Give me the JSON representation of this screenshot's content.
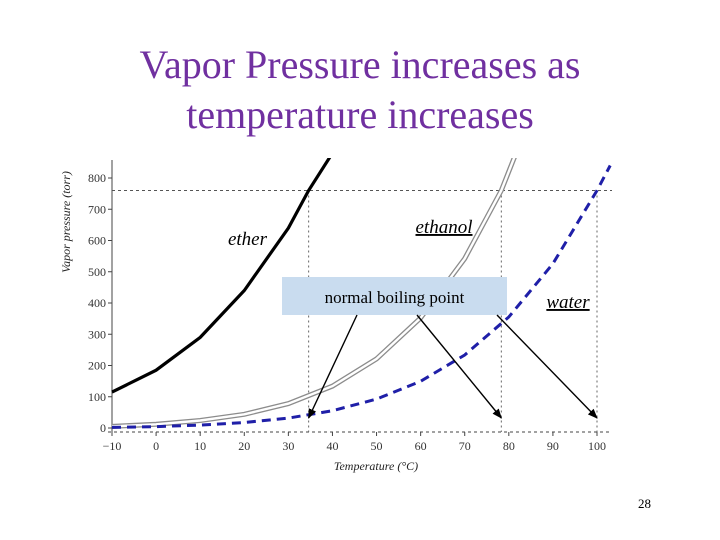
{
  "slide": {
    "title_line1": "Vapor Pressure increases as",
    "title_line2": "temperature increases",
    "page_number": "28"
  },
  "chart_data": {
    "type": "line",
    "xlabel": "Temperature (°C)",
    "ylabel": "Vapor pressure (torr)",
    "xlim": [
      -10,
      100
    ],
    "ylim": [
      0,
      800
    ],
    "xticks": [
      -10,
      0,
      10,
      20,
      30,
      40,
      50,
      60,
      70,
      80,
      90,
      100
    ],
    "yticks": [
      0,
      100,
      200,
      300,
      400,
      500,
      600,
      700,
      800
    ],
    "reference_line_y": 760,
    "grid": false,
    "series": [
      {
        "name": "ether",
        "color": "#000000",
        "x": [
          -10,
          0,
          10,
          20,
          30,
          34.6,
          40
        ],
        "y": [
          115,
          185,
          290,
          440,
          640,
          760,
          880
        ]
      },
      {
        "name": "ethanol",
        "color": "#9a9a9a",
        "x": [
          -10,
          0,
          10,
          20,
          30,
          40,
          50,
          60,
          70,
          78.3,
          85
        ],
        "y": [
          5,
          12,
          24,
          44,
          78,
          134,
          221,
          352,
          542,
          760,
          1000
        ]
      },
      {
        "name": "water",
        "color": "#1f1fa8",
        "x": [
          -10,
          0,
          10,
          20,
          30,
          40,
          50,
          60,
          70,
          80,
          90,
          100,
          103
        ],
        "y": [
          2,
          4.6,
          9.2,
          17.5,
          31.8,
          55.3,
          92.5,
          149.4,
          233.7,
          355.1,
          525.8,
          760,
          840
        ]
      }
    ],
    "annotations": {
      "ether": "ether",
      "ethanol": "ethanol",
      "water": "water",
      "normal_boiling_point": "normal boiling point"
    },
    "boiling_points": [
      34.6,
      78.3,
      100
    ]
  },
  "colors": {
    "title": "#7030a0",
    "water": "#1f1fa8",
    "callout_box": "#c9dcef"
  }
}
